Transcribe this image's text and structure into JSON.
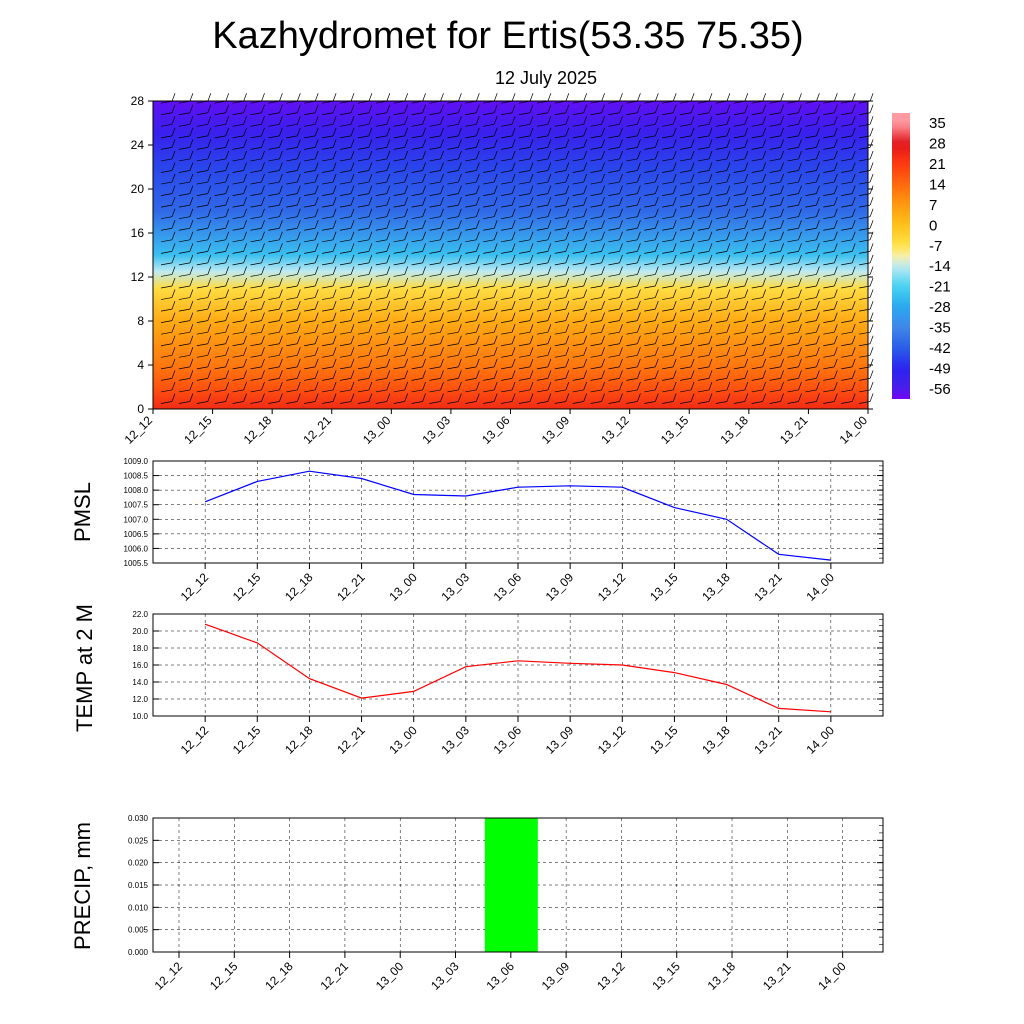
{
  "title": "Kazhydromet for Ertis(53.35 75.35)",
  "subtitle": "12 July 2025",
  "time_labels": [
    "12_12",
    "12_15",
    "12_18",
    "12_21",
    "13_00",
    "13_03",
    "13_06",
    "13_09",
    "13_12",
    "13_15",
    "13_18",
    "13_21",
    "14_00"
  ],
  "colors": {
    "pmsl_line": "#0000ff",
    "temp_line": "#ff0000",
    "precip_bar": "#00ff00",
    "grid": "#000000"
  },
  "chart_data": [
    {
      "type": "heatmap",
      "description_text": "",
      "x": [
        "12_12",
        "12_15",
        "12_18",
        "12_21",
        "13_00",
        "13_03",
        "13_06",
        "13_09",
        "13_12",
        "13_15",
        "13_18",
        "13_21",
        "14_00"
      ],
      "y_ticks": [
        0,
        4,
        8,
        12,
        16,
        20,
        24,
        28
      ],
      "ylim": [
        0,
        28
      ],
      "colorbar_labels": [
        "35",
        "28",
        "21",
        "14",
        "7",
        "0",
        "-7",
        "-14",
        "-21",
        "-28",
        "-35",
        "-42",
        "-49",
        "-56"
      ],
      "colorbar_values": [
        35,
        28,
        21,
        14,
        7,
        0,
        -7,
        -14,
        -21,
        -28,
        -35,
        -42,
        -49,
        -56
      ],
      "temperature_profile": [
        {
          "level": 0,
          "value": 24
        },
        {
          "level": 2,
          "value": 17
        },
        {
          "level": 4,
          "value": 12
        },
        {
          "level": 8,
          "value": 4
        },
        {
          "level": 11,
          "value": -6
        },
        {
          "level": 12.5,
          "value": -14
        },
        {
          "level": 14,
          "value": -24
        },
        {
          "level": 16,
          "value": -32
        },
        {
          "level": 18,
          "value": -40
        },
        {
          "level": 22,
          "value": -45
        },
        {
          "level": 25,
          "value": -52
        },
        {
          "level": 28,
          "value": -58
        }
      ],
      "wind_barbs": true,
      "grid": false
    },
    {
      "type": "line",
      "ylabel": "PMSL",
      "x": [
        "12_12",
        "12_15",
        "12_18",
        "12_21",
        "13_00",
        "13_03",
        "13_06",
        "13_09",
        "13_12",
        "13_15",
        "13_18",
        "13_21",
        "14_00"
      ],
      "values": [
        1007.6,
        1008.3,
        1008.65,
        1008.4,
        1007.85,
        1007.8,
        1008.1,
        1008.15,
        1008.1,
        1007.4,
        1007.0,
        1005.8,
        1005.6
      ],
      "ylim": [
        1005.5,
        1009.0
      ],
      "y_ticks": [
        "1005.5",
        "1006.0",
        "1006.5",
        "1007.0",
        "1007.5",
        "1008.0",
        "1008.5",
        "1009.0"
      ],
      "grid": true
    },
    {
      "type": "line",
      "ylabel": "TEMP at 2 M",
      "x": [
        "12_12",
        "12_15",
        "12_18",
        "12_21",
        "13_00",
        "13_03",
        "13_06",
        "13_09",
        "13_12",
        "13_15",
        "13_18",
        "13_21",
        "14_00"
      ],
      "values": [
        20.8,
        18.6,
        14.4,
        12.1,
        12.9,
        15.8,
        16.5,
        16.2,
        16.0,
        15.1,
        13.7,
        10.9,
        10.5
      ],
      "ylim": [
        10.0,
        22.0
      ],
      "y_ticks": [
        "10.0",
        "12.0",
        "14.0",
        "16.0",
        "18.0",
        "20.0",
        "22.0"
      ],
      "grid": true
    },
    {
      "type": "bar",
      "ylabel": "PRECIP, mm",
      "categories": [
        "12_12",
        "12_15",
        "12_18",
        "12_21",
        "13_00",
        "13_03",
        "13_06",
        "13_09",
        "13_12",
        "13_15",
        "13_18",
        "13_21",
        "14_00"
      ],
      "values": [
        0,
        0,
        0,
        0,
        0,
        0,
        0.03,
        0,
        0,
        0,
        0,
        0,
        0
      ],
      "ylim": [
        0,
        0.03
      ],
      "y_ticks": [
        "0.000",
        "0.005",
        "0.010",
        "0.015",
        "0.020",
        "0.025",
        "0.030"
      ],
      "grid": true
    }
  ]
}
